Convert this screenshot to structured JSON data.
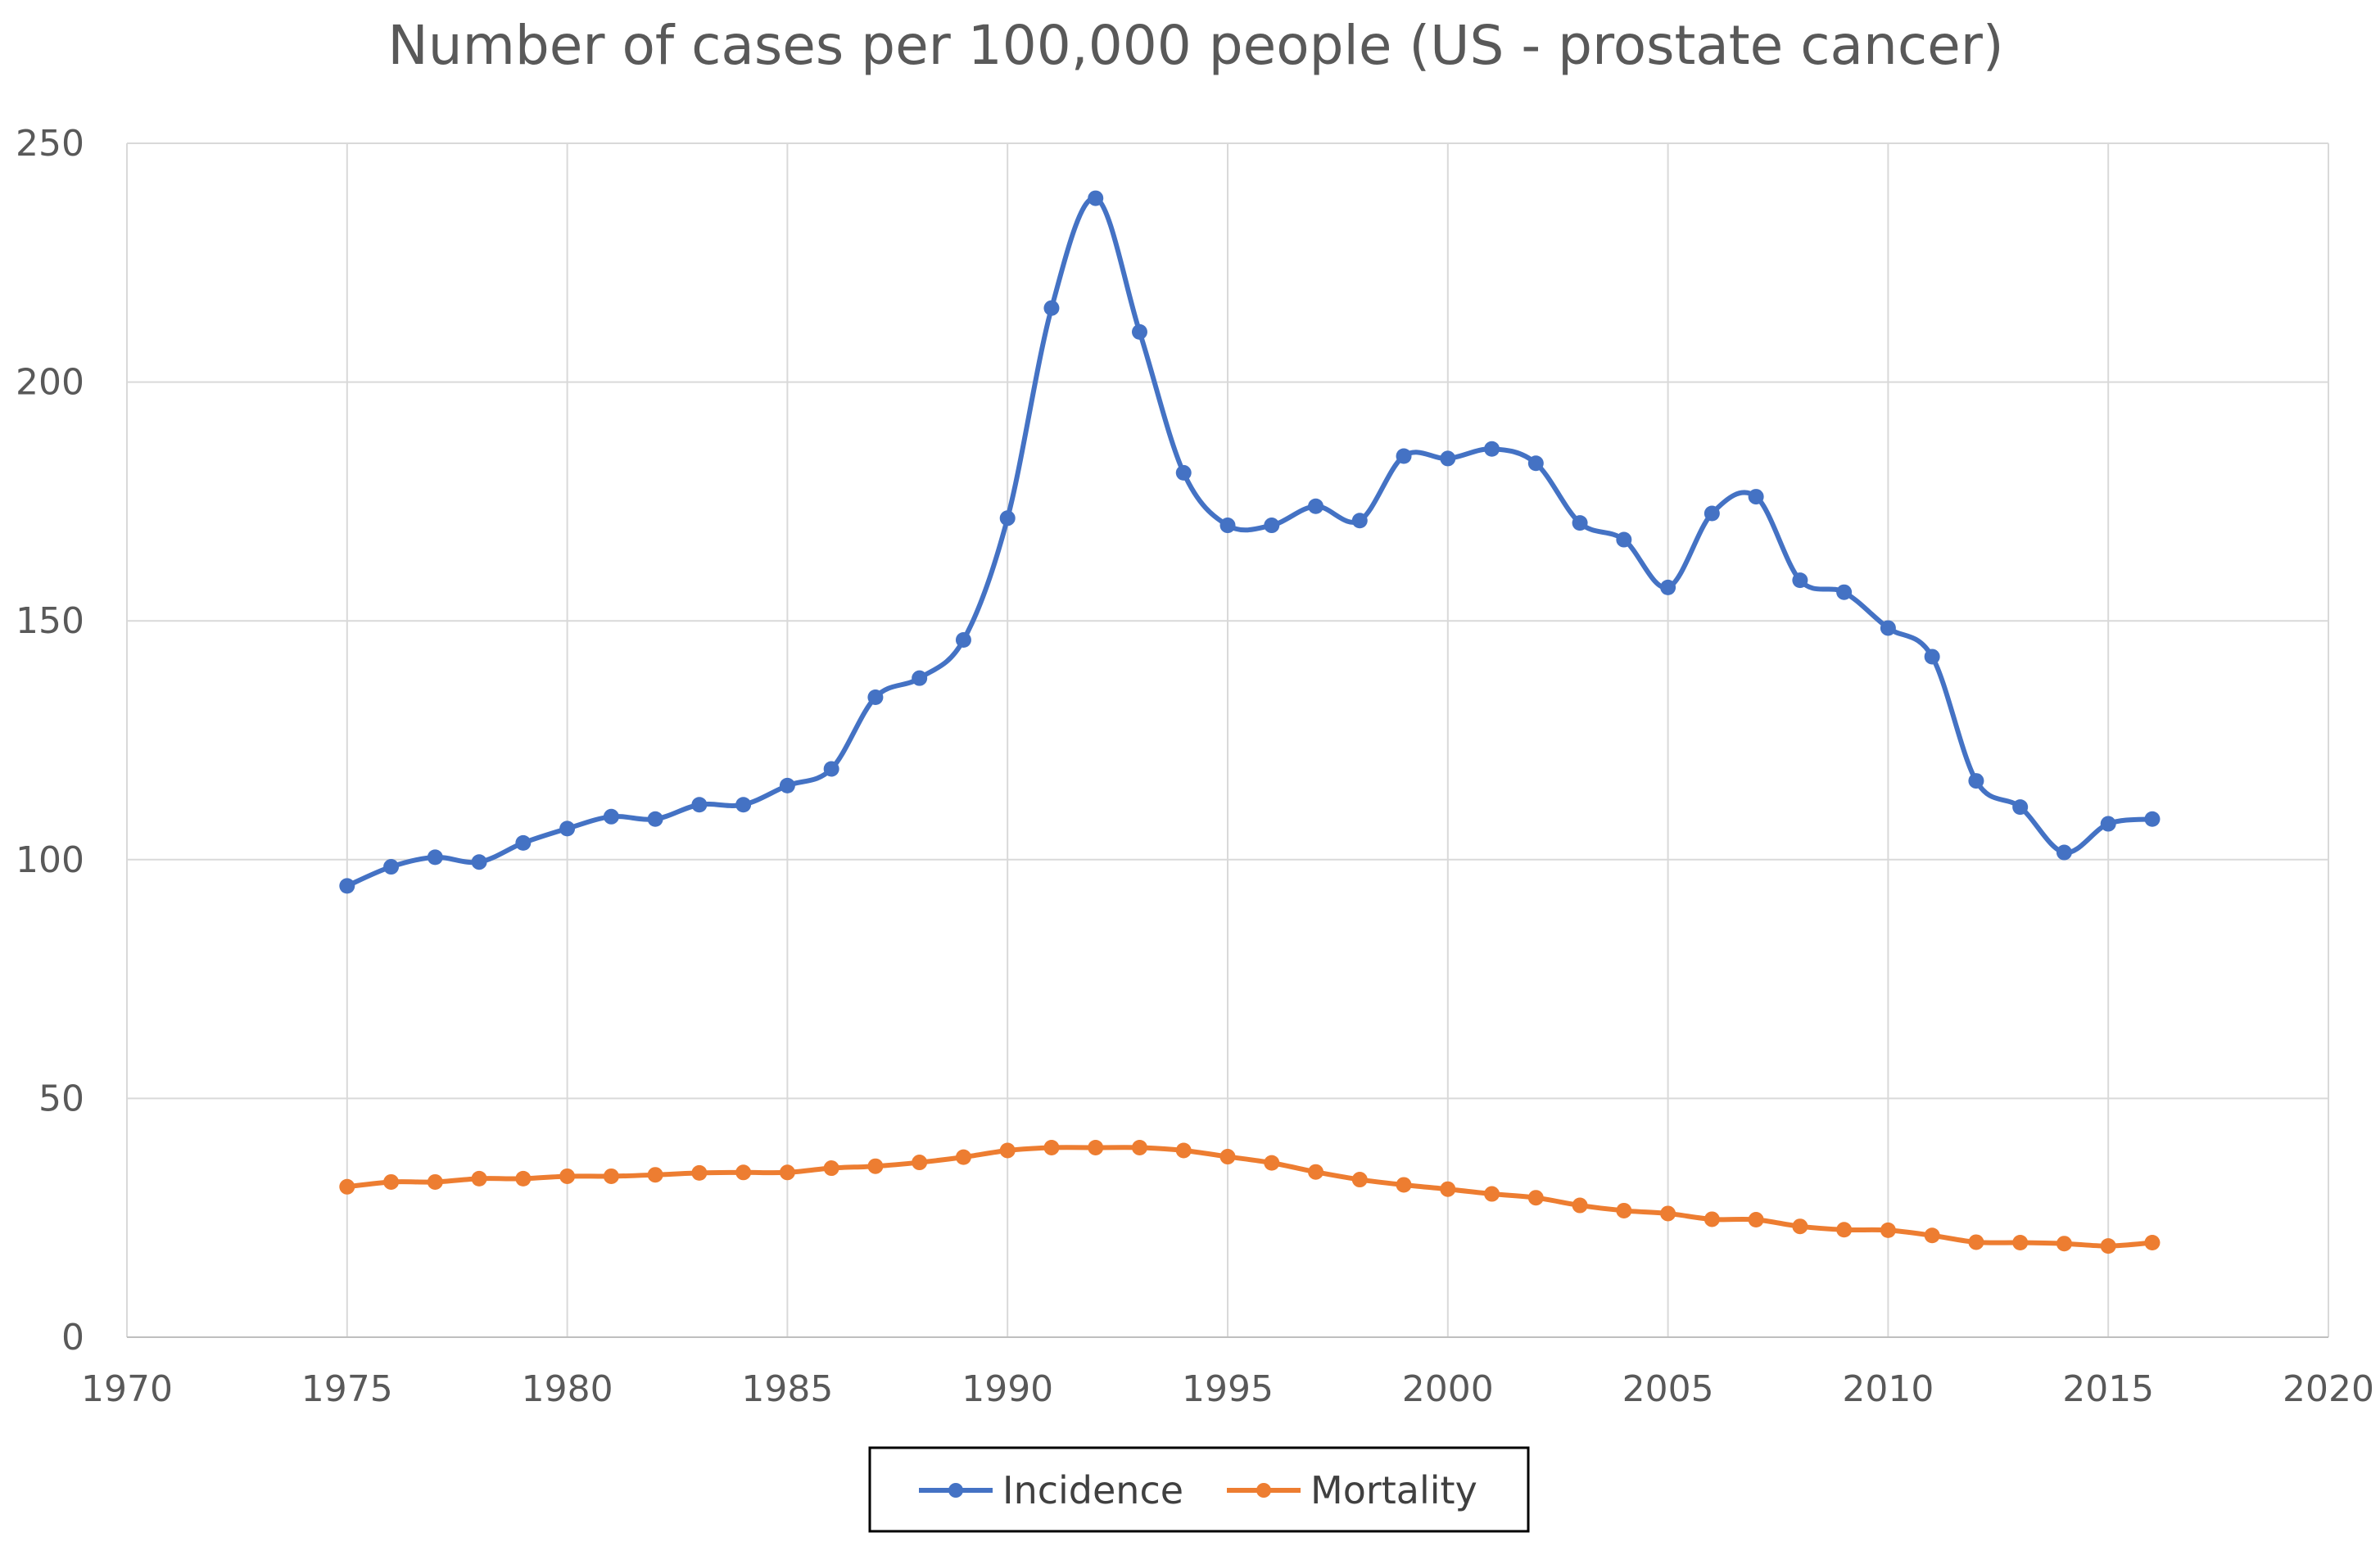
{
  "chart_data": {
    "type": "line",
    "title": "Number of cases per 100,000 people (US - prostate cancer)",
    "xlabel": "",
    "ylabel": "",
    "xlim": [
      1970,
      2020
    ],
    "ylim": [
      0,
      250
    ],
    "x_ticks": [
      "1970",
      "1975",
      "1980",
      "1985",
      "1990",
      "1995",
      "2000",
      "2005",
      "2010",
      "2015",
      "2020"
    ],
    "y_ticks": [
      "0",
      "50",
      "100",
      "150",
      "200",
      "250"
    ],
    "grid": true,
    "smooth": true,
    "legend_position": "bottom",
    "x": [
      1975,
      1976,
      1977,
      1978,
      1979,
      1980,
      1981,
      1982,
      1983,
      1984,
      1985,
      1986,
      1987,
      1988,
      1989,
      1990,
      1991,
      1992,
      1993,
      1994,
      1995,
      1996,
      1997,
      1998,
      1999,
      2000,
      2001,
      2002,
      2003,
      2004,
      2005,
      2006,
      2007,
      2008,
      2009,
      2010,
      2011,
      2012,
      2013,
      2014,
      2015,
      2016
    ],
    "series": [
      {
        "name": "Incidence",
        "color": "#4472c4",
        "values": [
          94.5,
          98.5,
          100.5,
          99.5,
          103.5,
          106.5,
          109,
          108.5,
          111.5,
          111.5,
          115.5,
          119,
          134,
          138,
          146,
          171.5,
          215.5,
          238.5,
          210.5,
          181,
          170,
          170,
          174,
          171,
          184.5,
          184,
          186,
          183,
          170.5,
          167,
          157,
          172.5,
          176,
          158.5,
          156,
          148.5,
          142.5,
          116.5,
          111,
          101.5,
          107.5,
          108.5
        ]
      },
      {
        "name": "Mortality",
        "color": "#ed7d31",
        "values": [
          31.5,
          32.5,
          32.5,
          33.2,
          33.2,
          33.7,
          33.7,
          34,
          34.4,
          34.5,
          34.5,
          35.4,
          35.8,
          36.6,
          37.7,
          39.1,
          39.7,
          39.7,
          39.7,
          39.1,
          37.8,
          36.5,
          34.6,
          33,
          31.9,
          31,
          30,
          29.2,
          27.6,
          26.5,
          25.9,
          24.7,
          24.6,
          23.2,
          22.5,
          22.4,
          21.3,
          19.9,
          19.8,
          19.6,
          19.1,
          19.8
        ]
      }
    ]
  }
}
